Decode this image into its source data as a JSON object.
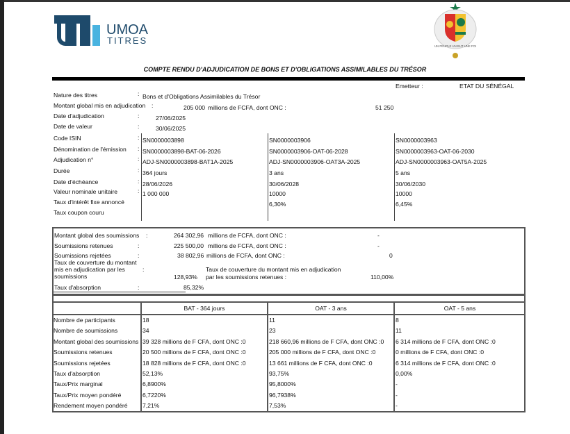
{
  "header": {
    "logo_text_1": "UMOA",
    "logo_text_2": "TITRES",
    "coat_of_arms_text": "UN PEUPLE UN BUT UNE FOI",
    "title": "COMPTE RENDU D'ADJUDICATION DE BONS ET D'OBLIGATIONS ASSIMILABLES DU TRÉSOR",
    "brand_color": "#1e4a6b",
    "brand_accent": "#49b3e0"
  },
  "emetteur": {
    "label": "Emetteur :",
    "value": "ETAT DU SÉNÉGAL"
  },
  "general": {
    "nature": {
      "label": "Nature des titres",
      "value": "Bons et d'Obligations Assimilables du Trésor"
    },
    "montant": {
      "label": "Montant global mis en adjudication",
      "value": "205 000",
      "unit": "millions de FCFA, dont ONC :",
      "onc": "51 250"
    },
    "date_adj": {
      "label": "Date d'adjudication",
      "value": "27/06/2025"
    },
    "date_valeur": {
      "label": "Date de valeur",
      "value": "30/06/2025"
    }
  },
  "colon": ":",
  "issues": {
    "labels": [
      "Code ISIN",
      "Dénomination de l'émission",
      "Adjudication n°",
      "Durée",
      "Date d'échéance",
      "Valeur nominale unitaire",
      "Taux d'intérêt fixe annoncé",
      "Taux coupon couru"
    ],
    "columns": [
      [
        "SN0000003898",
        "SN0000003898-BAT-06-2026",
        "ADJ-SN0000003898-BAT1A-2025",
        "364 jours",
        "28/06/2026",
        "1 000 000",
        "",
        ""
      ],
      [
        "SN0000003906",
        "SN0000003906-OAT-06-2028",
        "ADJ-SN0000003906-OAT3A-2025",
        "3 ans",
        "30/06/2028",
        "10000",
        "6,30%",
        ""
      ],
      [
        "SN0000003963",
        "SN0000003963-OAT-06-2030",
        "ADJ-SN0000003963-OAT5A-2025",
        "5 ans",
        "30/06/2030",
        "10000",
        "6,45%",
        ""
      ]
    ]
  },
  "summary": {
    "montant_soumissions": {
      "label": "Montant global des soumissions",
      "value": "264 302,96",
      "unit": "millions de FCFA, dont ONC :",
      "onc": "-"
    },
    "retenues": {
      "label": "Soumissions retenues",
      "value": "225 500,00",
      "unit": "millions de FCFA, dont ONC :",
      "onc": "-"
    },
    "rejetees": {
      "label": "Soumissions rejetées",
      "value": "38 802,96",
      "unit": "millions de FCFA, dont ONC :",
      "onc": "0"
    },
    "couverture": {
      "label_1": "Taux de couverture du montant",
      "label_2": "mis en adjudication par les",
      "label_3": "soumissions",
      "value": "128,93%",
      "retenues_label_1": "Taux de couverture du montant mis en adjudication",
      "retenues_label_2": "par les soumissions retenues :",
      "retenues_value": "110,00%"
    },
    "absorption": {
      "label": "Taux d'absorption",
      "value": "85,32%"
    }
  },
  "results": {
    "headers": [
      "BAT - 364 jours",
      "OAT - 3 ans",
      "OAT - 5 ans"
    ],
    "rows": [
      {
        "label": "Nombre de participants",
        "values": [
          "18",
          "11",
          "8"
        ]
      },
      {
        "label": "Nombre de soumissions",
        "values": [
          "34",
          "23",
          "11"
        ]
      },
      {
        "label": "Montant global des soumissions",
        "values": [
          "39 328 millions de F CFA, dont ONC :0",
          "218 660,96 millions de F CFA, dont ONC :0",
          "6 314 millions de F CFA, dont ONC :0"
        ]
      },
      {
        "label": "Soumissions retenues",
        "values": [
          "20 500 millions de F CFA, dont ONC :0",
          "205 000 millions de F CFA, dont ONC :0",
          "0 millions de F CFA, dont ONC :0"
        ]
      },
      {
        "label": "Soumissions rejetées",
        "values": [
          "18 828 millions de F CFA, dont ONC :0",
          "13 661 millions de F CFA, dont ONC :0",
          "6 314 millions de F CFA, dont ONC :0"
        ]
      },
      {
        "label": "Taux d'absorption",
        "values": [
          "52,13%",
          "93,75%",
          "0,00%"
        ]
      },
      {
        "label": "Taux/Prix marginal",
        "values": [
          "6,8900%",
          "95,8000%",
          "-"
        ]
      },
      {
        "label": "Taux/Prix moyen pondéré",
        "values": [
          "6,7220%",
          "96,7938%",
          "-"
        ]
      },
      {
        "label": "Rendement moyen pondéré",
        "values": [
          "7,21%",
          "7,53%",
          "-"
        ]
      }
    ]
  }
}
